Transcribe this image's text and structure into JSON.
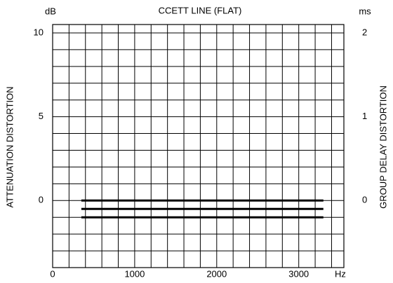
{
  "chart_data": {
    "type": "line",
    "title": "CCETT LINE (FLAT)",
    "y_unit": "dB",
    "y2_unit": "ms",
    "x_unit": "Hz",
    "ylabel": "ATTENUATION DISTORTION",
    "y2label": "GROUP DELAY DISTORTION",
    "xlim": [
      0,
      3550
    ],
    "xticks": [
      0,
      1000,
      2000,
      3000
    ],
    "ylim": [
      -4,
      10.5
    ],
    "yticks": [
      0,
      5,
      10
    ],
    "y2lim": [
      -0.8,
      2.1
    ],
    "y2ticks": [
      0,
      1,
      2
    ],
    "xgrid": [
      0,
      200,
      400,
      600,
      800,
      1000,
      1200,
      1400,
      1600,
      1800,
      2000,
      2200,
      2400,
      2600,
      2800,
      3000,
      3200,
      3400
    ],
    "ygrid": [
      -4,
      -3,
      -2,
      -1,
      0,
      1,
      2,
      3,
      4,
      5,
      6,
      7,
      8,
      9,
      10
    ],
    "color": "#000000",
    "series": [
      {
        "x": [
          350,
          3300
        ],
        "values": [
          0,
          0
        ]
      },
      {
        "x": [
          350,
          3300
        ],
        "values": [
          -0.5,
          -0.5
        ]
      },
      {
        "x": [
          350,
          3300
        ],
        "values": [
          -1,
          -1
        ]
      }
    ]
  }
}
